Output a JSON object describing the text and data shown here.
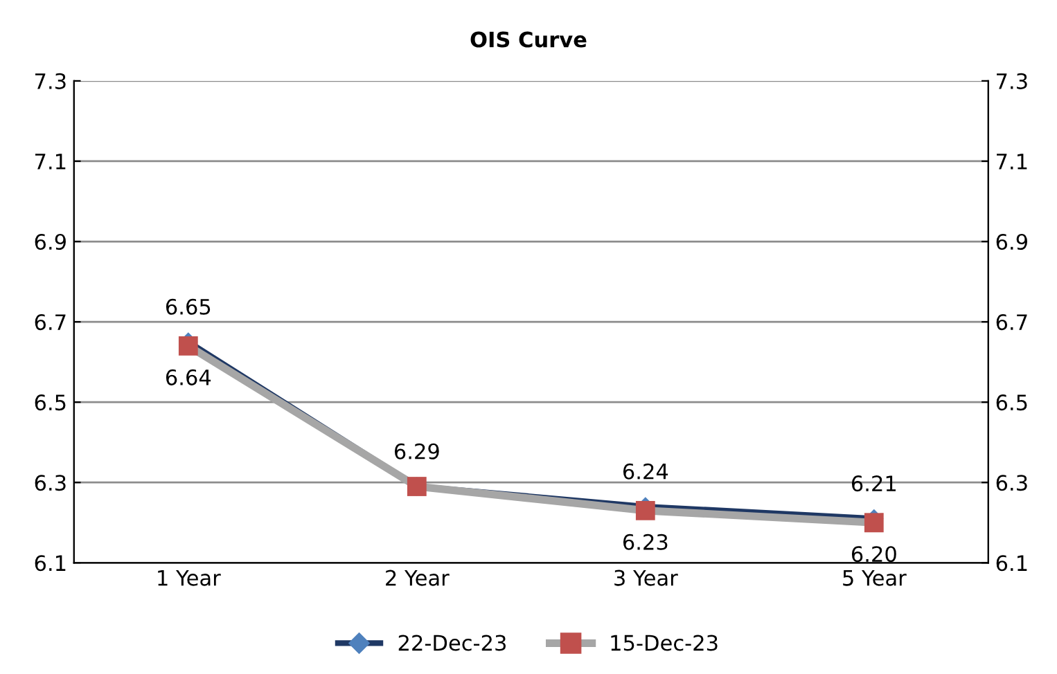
{
  "chart_data": {
    "type": "line",
    "title": "OIS Curve",
    "categories": [
      "1 Year",
      "2 Year",
      "3 Year",
      "5 Year"
    ],
    "series": [
      {
        "name": "22-Dec-23",
        "color": "#1f3864",
        "marker": "diamond",
        "colors": [
          "#4f81bd",
          "#4f81bd",
          "#4f81bd",
          "#4f81bd"
        ],
        "values": [
          6.65,
          6.29,
          6.24,
          6.21
        ],
        "value_labels": [
          "6.65",
          "6.29",
          "6.24",
          "6.21"
        ]
      },
      {
        "name": "15-Dec-23",
        "color": "#a6a6a6",
        "marker": "square",
        "colors": [
          "#c0504d",
          "#c0504d",
          "#c0504d",
          "#c0504d"
        ],
        "values": [
          6.64,
          6.29,
          6.23,
          6.2
        ],
        "value_labels": [
          "6.64",
          null,
          "6.23",
          "6.20"
        ]
      }
    ],
    "ylim": [
      6.1,
      7.3
    ],
    "yticks": [
      6.1,
      6.3,
      6.5,
      6.7,
      6.9,
      7.1,
      7.3
    ],
    "y2lim": [
      6.1,
      7.3
    ],
    "y2ticks": [
      6.1,
      6.3,
      6.5,
      6.7,
      6.9,
      7.1,
      7.3
    ],
    "grid": "y",
    "legend": "bottom"
  }
}
